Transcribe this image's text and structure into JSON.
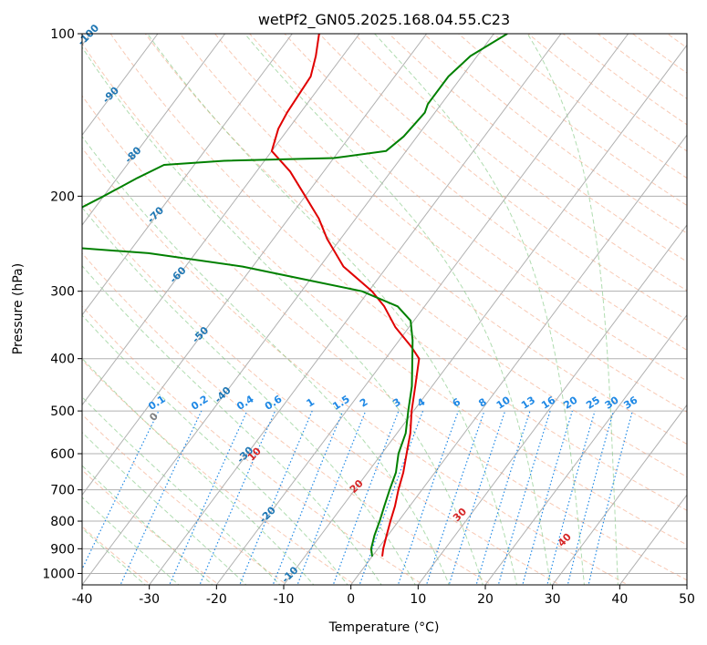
{
  "chart_data": {
    "type": "line",
    "subtype": "skew-t log-p diagram",
    "title": "wetPf2_GN05.2025.168.04.55.C23",
    "xlabel": "Temperature (°C)",
    "ylabel": "Pressure (hPa)",
    "xlim": [
      -40,
      50
    ],
    "ylim": [
      1050,
      100
    ],
    "y_scale": "log",
    "x_ticks": [
      -40,
      -30,
      -20,
      -10,
      0,
      10,
      20,
      30,
      40,
      50
    ],
    "y_ticks": [
      1000,
      900,
      800,
      700,
      600,
      500,
      400,
      300,
      200,
      100
    ],
    "grid": true,
    "series": [
      {
        "role": "temperature",
        "color": "#e00000",
        "points": [
          {
            "p": 930,
            "t": 1.5
          },
          {
            "p": 900,
            "t": 0.8
          },
          {
            "p": 850,
            "t": -0.2
          },
          {
            "p": 800,
            "t": -1.2
          },
          {
            "p": 750,
            "t": -2.2
          },
          {
            "p": 700,
            "t": -3.5
          },
          {
            "p": 650,
            "t": -4.7
          },
          {
            "p": 600,
            "t": -6.3
          },
          {
            "p": 550,
            "t": -8.0
          },
          {
            "p": 500,
            "t": -10.3
          },
          {
            "p": 450,
            "t": -12.5
          },
          {
            "p": 400,
            "t": -15.0
          },
          {
            "p": 380,
            "t": -17.5
          },
          {
            "p": 350,
            "t": -22.0
          },
          {
            "p": 320,
            "t": -26.0
          },
          {
            "p": 300,
            "t": -29.5
          },
          {
            "p": 270,
            "t": -36.5
          },
          {
            "p": 240,
            "t": -42.0
          },
          {
            "p": 220,
            "t": -45.5
          },
          {
            "p": 200,
            "t": -50.0
          },
          {
            "p": 180,
            "t": -55.0
          },
          {
            "p": 165,
            "t": -60.0
          },
          {
            "p": 150,
            "t": -61.5
          },
          {
            "p": 140,
            "t": -62.0
          },
          {
            "p": 120,
            "t": -62.5
          },
          {
            "p": 110,
            "t": -64.0
          },
          {
            "p": 100,
            "t": -66.0
          }
        ]
      },
      {
        "role": "dewpoint",
        "color": "#008000",
        "points": [
          {
            "p": 930,
            "t": 0.0
          },
          {
            "p": 900,
            "t": -1.0
          },
          {
            "p": 850,
            "t": -2.0
          },
          {
            "p": 800,
            "t": -2.8
          },
          {
            "p": 750,
            "t": -3.8
          },
          {
            "p": 700,
            "t": -4.8
          },
          {
            "p": 650,
            "t": -5.8
          },
          {
            "p": 600,
            "t": -7.5
          },
          {
            "p": 550,
            "t": -8.7
          },
          {
            "p": 500,
            "t": -10.8
          },
          {
            "p": 450,
            "t": -13.0
          },
          {
            "p": 400,
            "t": -16.0
          },
          {
            "p": 370,
            "t": -18.0
          },
          {
            "p": 340,
            "t": -20.5
          },
          {
            "p": 320,
            "t": -24.0
          },
          {
            "p": 300,
            "t": -31.0
          },
          {
            "p": 285,
            "t": -41.0
          },
          {
            "p": 270,
            "t": -51.5
          },
          {
            "p": 255,
            "t": -67.0
          },
          {
            "p": 245,
            "t": -87.0
          },
          {
            "p": 240,
            "t": -88.0
          },
          {
            "p": 220,
            "t": -84.0
          },
          {
            "p": 200,
            "t": -80.0
          },
          {
            "p": 185,
            "t": -77.0
          },
          {
            "p": 175,
            "t": -74.5
          },
          {
            "p": 172,
            "t": -66.0
          },
          {
            "p": 170,
            "t": -50.0
          },
          {
            "p": 165,
            "t": -43.0
          },
          {
            "p": 155,
            "t": -42.0
          },
          {
            "p": 140,
            "t": -41.5
          },
          {
            "p": 135,
            "t": -42.0
          },
          {
            "p": 120,
            "t": -42.0
          },
          {
            "p": 110,
            "t": -41.0
          },
          {
            "p": 100,
            "t": -38.0
          }
        ]
      }
    ],
    "isotherm_labels": [
      -100,
      -90,
      -80,
      -70,
      -60,
      -50,
      -40,
      -30,
      -20,
      -10
    ],
    "mixing_ratio_labels": [
      "0.1",
      "0.2",
      "0.4",
      "0.6",
      "1",
      "1.5",
      "2",
      "3",
      "4",
      "6",
      "8",
      "10",
      "13",
      "16",
      "20",
      "25",
      "30",
      "36"
    ],
    "dry_adiabat_labels": [
      0,
      10,
      20,
      30,
      40
    ],
    "colors": {
      "isotherm_label": "#1f77b4",
      "mixing_ratio": "#1e88e5",
      "dry_adiabat": "#f4a582",
      "dry_adiabat_label": "#d62728",
      "moist_adiabat": "#7cc47c",
      "grid": "#b0b0b0"
    }
  }
}
